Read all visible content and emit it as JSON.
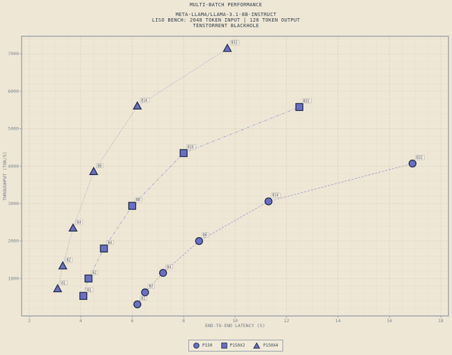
{
  "title": {
    "main": "MULTI-BATCH PERFORMANCE",
    "line2": "META-LLAMA/LLAMA-3.1-8B-INSTRUCT",
    "line3": "LISO BENCH: 2048 TOKEN INPUT | 128 TOKEN OUTPUT",
    "line4": "TENSTORRENT BLACKHOLE"
  },
  "axes": {
    "xlabel": "END-TO-END LATENCY (S)",
    "ylabel": "THROUGHPUT (TOK/S)",
    "xticks": [
      "2",
      "4",
      "6",
      "8",
      "10",
      "12",
      "14",
      "16",
      "18"
    ],
    "yticks": [
      "1000",
      "2000",
      "3000",
      "4000",
      "5000",
      "6000",
      "7000"
    ]
  },
  "legend": {
    "items": [
      {
        "label": "P150",
        "marker": "circle"
      },
      {
        "label": "P150X2",
        "marker": "square"
      },
      {
        "label": "P150X4",
        "marker": "triangle"
      }
    ]
  },
  "colors": {
    "background": "#efe7d6",
    "marker_fill": "#6b6fc4",
    "marker_edge": "#1f2f46",
    "line": "#a9a6cf",
    "grid": "#ddd4c0",
    "frame": "#8e999e"
  },
  "chart_data": {
    "type": "scatter",
    "title": "MULTI-BATCH PERFORMANCE",
    "subtitle": "META-LLAMA/LLAMA-3.1-8B-INSTRUCT | LISO BENCH: 2048 TOKEN INPUT | 128 TOKEN OUTPUT | TENSTORRENT BLACKHOLE",
    "xlabel": "END-TO-END LATENCY (S)",
    "ylabel": "THROUGHPUT (TOK/S)",
    "xlim": [
      1.7,
      18.3
    ],
    "ylim": [
      0,
      7470
    ],
    "grid": true,
    "legend_position": "bottom-center",
    "series": [
      {
        "name": "P150",
        "marker": "circle",
        "labels": [
          "B1",
          "B2",
          "B4",
          "B8",
          "B16",
          "B32"
        ],
        "x": [
          6.2,
          6.5,
          7.2,
          8.6,
          11.3,
          16.9
        ],
        "y": [
          310,
          630,
          1150,
          2000,
          3060,
          4070
        ]
      },
      {
        "name": "P150X2",
        "marker": "square",
        "labels": [
          "B1",
          "B2",
          "B4",
          "B8",
          "B16",
          "B32"
        ],
        "x": [
          4.1,
          4.3,
          4.9,
          6.0,
          8.0,
          12.5
        ],
        "y": [
          535,
          1000,
          1800,
          2940,
          4350,
          5580
        ]
      },
      {
        "name": "P150X4",
        "marker": "triangle",
        "labels": [
          "B1",
          "B2",
          "B4",
          "B8",
          "B16",
          "B32"
        ],
        "x": [
          3.1,
          3.3,
          3.7,
          4.5,
          6.2,
          9.7
        ],
        "y": [
          720,
          1330,
          2340,
          3850,
          5600,
          7140
        ]
      }
    ]
  }
}
